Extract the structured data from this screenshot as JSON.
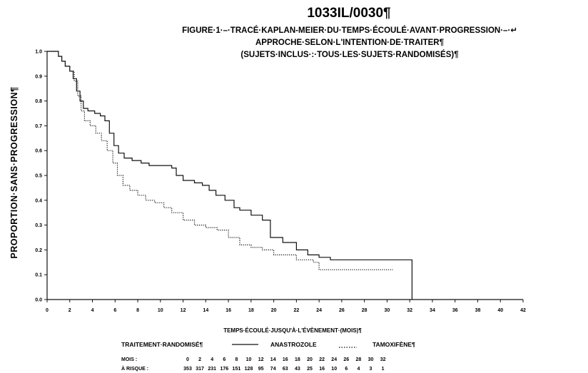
{
  "header": {
    "study_id": "1033IL/0030¶",
    "subtitle_line1": "FIGURE·1·–·TRACÉ·KAPLAN-MEIER·DU·TEMPS·ÉCOULÉ·AVANT·PROGRESSION·–·↵",
    "subtitle_line2": "APPROCHE·SELON·L'INTENTION·DE·TRAITER¶",
    "subtitle_line3": "(SUJETS·INCLUS·:·TOUS·LES·SUJETS·RANDOMISÉS)¶"
  },
  "legend": {
    "heading": "TRAITEMENT·RANDOMISÉ¶",
    "anastrozole": "ANASTROZOLE",
    "tamoxifene": "TAMOXIFÈNE¶"
  },
  "risk_table": {
    "label_months": "MOIS :",
    "label_at_risk": "À RISQUE :",
    "months": [
      "0",
      "2",
      "4",
      "6",
      "8",
      "10",
      "12",
      "14",
      "16",
      "18",
      "20",
      "22",
      "24",
      "26",
      "28",
      "30",
      "32"
    ],
    "counts": [
      "353",
      "317",
      "231",
      "176",
      "151",
      "128",
      "95",
      "74",
      "63",
      "43",
      "25",
      "16",
      "10",
      "6",
      "4",
      "3",
      "1"
    ]
  },
  "chart_data": {
    "type": "line",
    "title": "",
    "xlabel": "TEMPS·ÉCOULÉ·JUSQU'À·L'ÉVÈNEMENT·(MOIS)¶",
    "ylabel": "PROPORTION·SANS·PROGRESSION¶",
    "xlim": [
      0,
      42
    ],
    "ylim": [
      0,
      1
    ],
    "xticks": [
      "0",
      "2",
      "4",
      "6",
      "8",
      "10",
      "12",
      "14",
      "16",
      "18",
      "20",
      "22",
      "24",
      "26",
      "28",
      "30",
      "32",
      "34",
      "36",
      "38",
      "40",
      "42"
    ],
    "yticks": [
      "0.0",
      "0.1",
      "0.2",
      "0.3",
      "0.4",
      "0.5",
      "0.6",
      "0.7",
      "0.8",
      "0.9",
      "1.0"
    ],
    "grid": false,
    "legend_position": "bottom",
    "series": [
      {
        "name": "ANASTROZOLE",
        "style": "solid",
        "color": "#111111",
        "points": [
          [
            0,
            1.0
          ],
          [
            0.8,
            1.0
          ],
          [
            1.0,
            0.98
          ],
          [
            1.3,
            0.96
          ],
          [
            1.6,
            0.94
          ],
          [
            2.0,
            0.92
          ],
          [
            2.3,
            0.89
          ],
          [
            2.6,
            0.84
          ],
          [
            2.9,
            0.8
          ],
          [
            3.2,
            0.77
          ],
          [
            3.6,
            0.76
          ],
          [
            4.2,
            0.75
          ],
          [
            4.7,
            0.74
          ],
          [
            5.1,
            0.72
          ],
          [
            5.5,
            0.67
          ],
          [
            5.9,
            0.62
          ],
          [
            6.3,
            0.59
          ],
          [
            6.8,
            0.57
          ],
          [
            7.5,
            0.56
          ],
          [
            8.3,
            0.55
          ],
          [
            9.0,
            0.54
          ],
          [
            10.5,
            0.54
          ],
          [
            11.0,
            0.53
          ],
          [
            11.4,
            0.5
          ],
          [
            12.0,
            0.48
          ],
          [
            13.0,
            0.47
          ],
          [
            13.7,
            0.46
          ],
          [
            14.3,
            0.44
          ],
          [
            14.9,
            0.42
          ],
          [
            15.7,
            0.4
          ],
          [
            16.5,
            0.37
          ],
          [
            17.0,
            0.36
          ],
          [
            18.0,
            0.34
          ],
          [
            19.0,
            0.32
          ],
          [
            19.7,
            0.25
          ],
          [
            20.8,
            0.23
          ],
          [
            22.0,
            0.2
          ],
          [
            23.0,
            0.18
          ],
          [
            24.0,
            0.17
          ],
          [
            25.0,
            0.16
          ],
          [
            32.2,
            0.16
          ],
          [
            32.2,
            0.0
          ]
        ]
      },
      {
        "name": "TAMOXIFÈNE",
        "style": "dotted",
        "color": "#111111",
        "points": [
          [
            0,
            1.0
          ],
          [
            0.8,
            1.0
          ],
          [
            1.0,
            0.98
          ],
          [
            1.3,
            0.96
          ],
          [
            1.6,
            0.94
          ],
          [
            2.0,
            0.92
          ],
          [
            2.4,
            0.88
          ],
          [
            2.7,
            0.82
          ],
          [
            3.0,
            0.76
          ],
          [
            3.3,
            0.72
          ],
          [
            3.8,
            0.7
          ],
          [
            4.3,
            0.67
          ],
          [
            4.8,
            0.64
          ],
          [
            5.3,
            0.6
          ],
          [
            5.8,
            0.55
          ],
          [
            6.2,
            0.5
          ],
          [
            6.7,
            0.46
          ],
          [
            7.3,
            0.44
          ],
          [
            8.0,
            0.42
          ],
          [
            8.7,
            0.4
          ],
          [
            9.5,
            0.39
          ],
          [
            10.3,
            0.37
          ],
          [
            11.0,
            0.35
          ],
          [
            12.0,
            0.32
          ],
          [
            13.0,
            0.3
          ],
          [
            14.0,
            0.29
          ],
          [
            15.0,
            0.28
          ],
          [
            16.0,
            0.25
          ],
          [
            17.0,
            0.22
          ],
          [
            18.0,
            0.21
          ],
          [
            19.0,
            0.2
          ],
          [
            20.0,
            0.18
          ],
          [
            22.0,
            0.16
          ],
          [
            23.5,
            0.15
          ],
          [
            24.0,
            0.12
          ],
          [
            30.5,
            0.12
          ]
        ]
      }
    ]
  }
}
